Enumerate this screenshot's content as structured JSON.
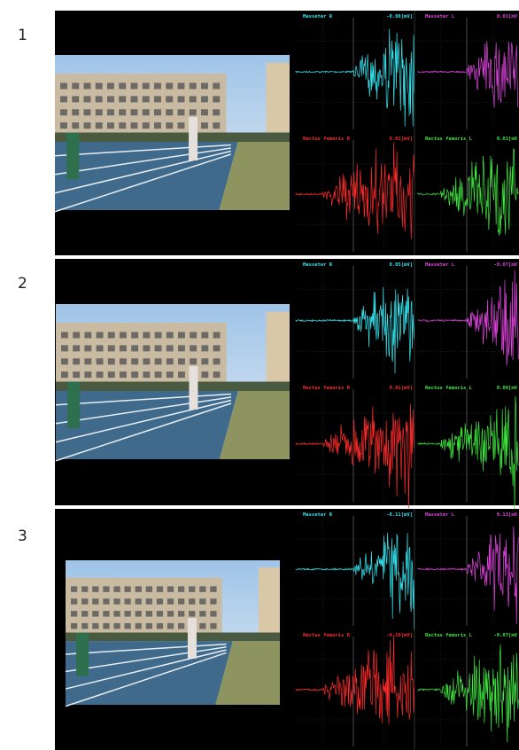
{
  "panels": [
    {
      "label": "1",
      "channels": [
        {
          "name": "Masseter R",
          "value": "-0.08[mV]"
        },
        {
          "name": "Masseter L",
          "value": "0.01[mV"
        },
        {
          "name": "Rectus femoris R",
          "value": "0.01[mV]"
        },
        {
          "name": "Rectus femoris L",
          "value": "0.01[mV"
        }
      ]
    },
    {
      "label": "2",
      "channels": [
        {
          "name": "Masseter R",
          "value": "0.05[mV]"
        },
        {
          "name": "Masseter L",
          "value": "-0.07[mV"
        },
        {
          "name": "Rectus femoris R",
          "value": "0.01[mV]"
        },
        {
          "name": "Rectus femoris L",
          "value": "0.00[mV"
        }
      ]
    },
    {
      "label": "3",
      "channels": [
        {
          "name": "Masseter R",
          "value": "-0.11[mV]"
        },
        {
          "name": "Masseter L",
          "value": "0.11[mV"
        },
        {
          "name": "Rectus femoris R",
          "value": "-0.10[mV]"
        },
        {
          "name": "Rectus femoris L",
          "value": "-0.07[mV"
        }
      ]
    }
  ]
}
